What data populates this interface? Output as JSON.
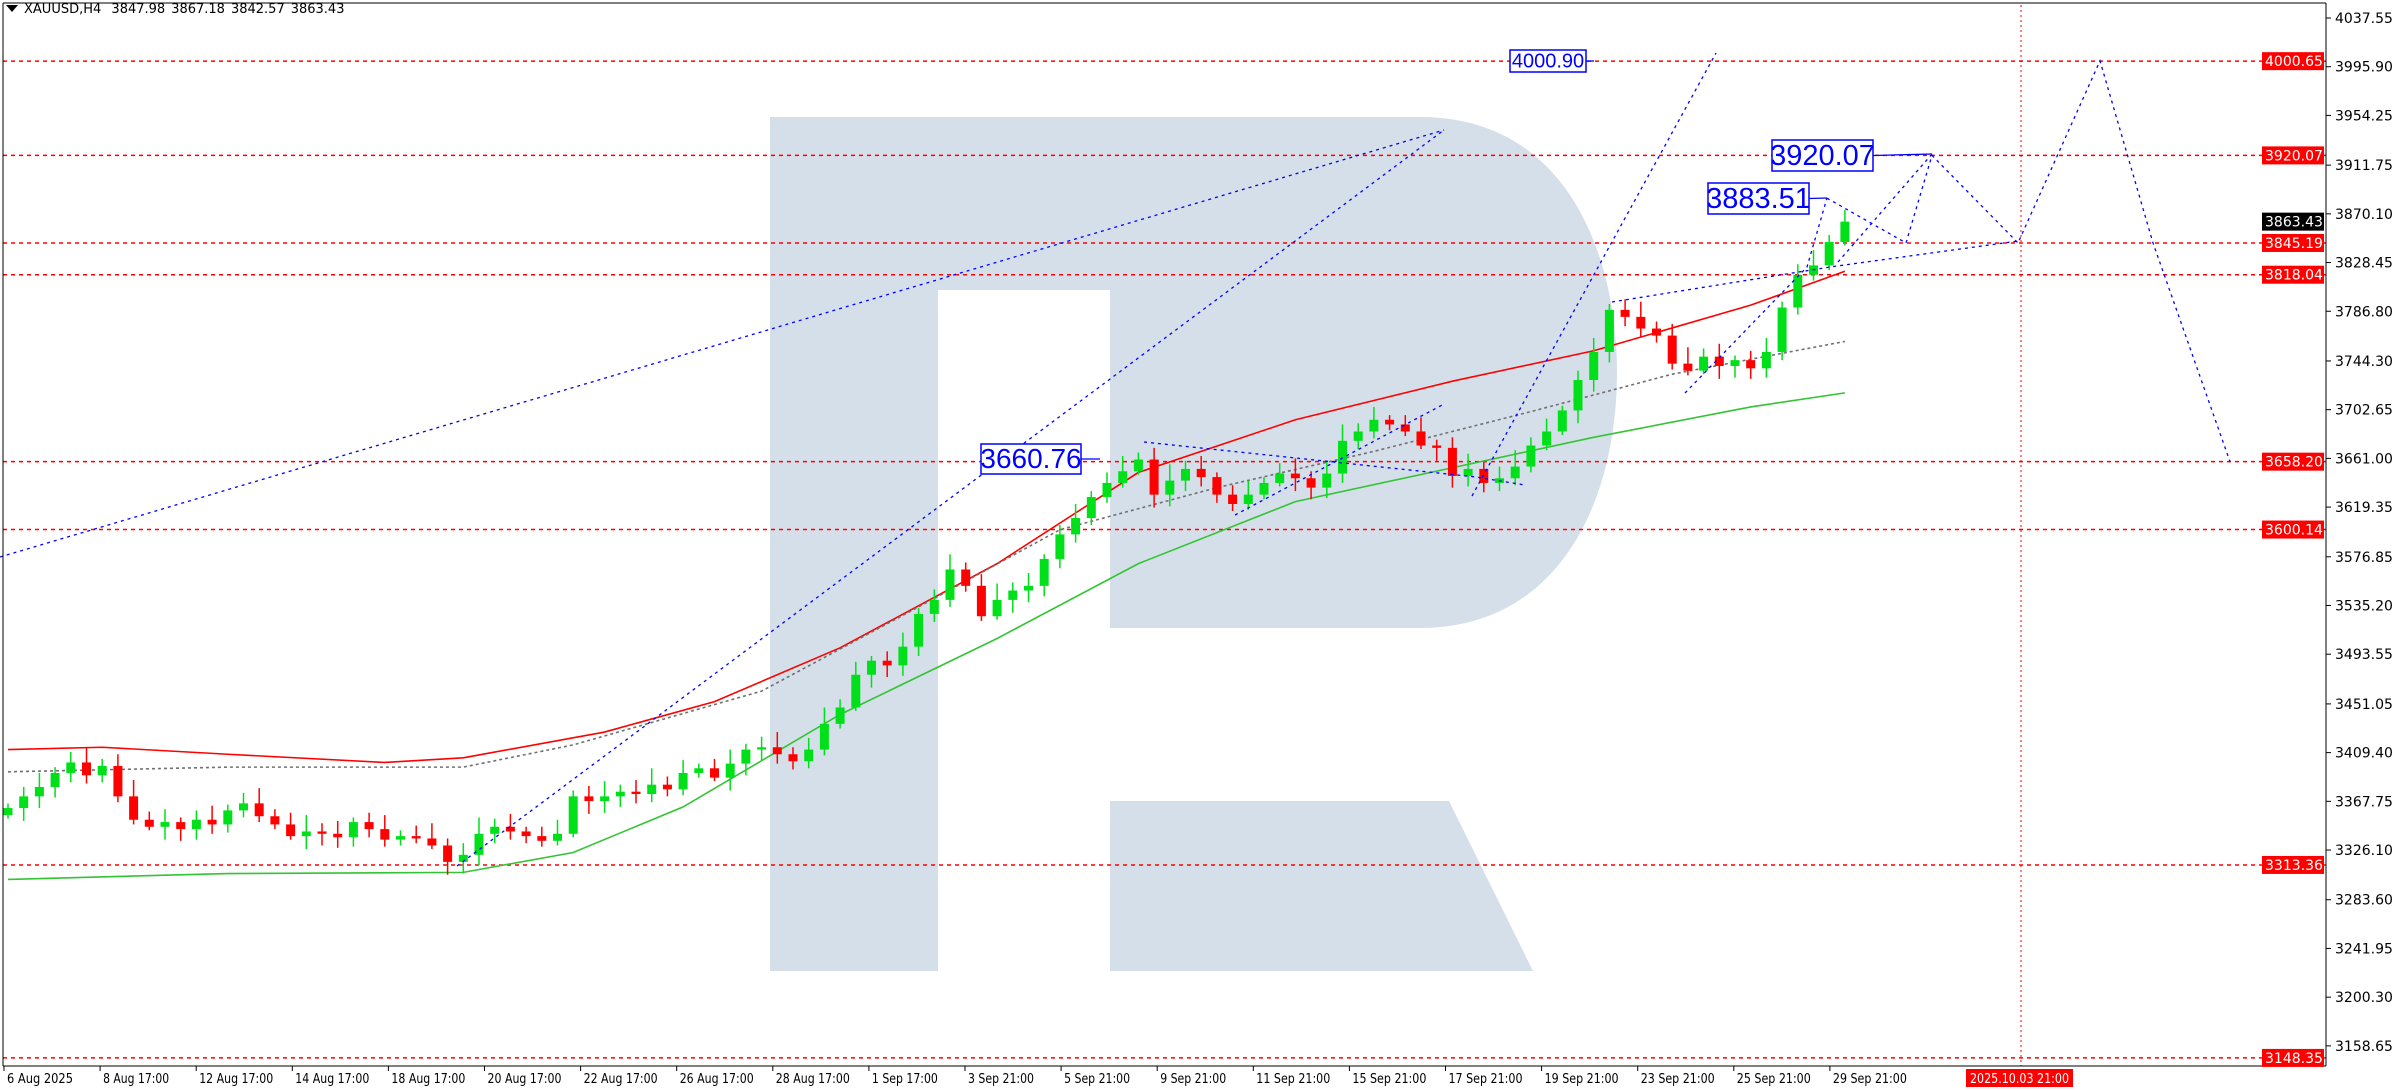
{
  "header": {
    "symbol": "XAUUSD,H4",
    "open": "3847.98",
    "high": "3867.18",
    "low": "3842.57",
    "close": "3863.43"
  },
  "chart_data": {
    "type": "candlestick",
    "symbol": "XAUUSD",
    "timeframe": "H4",
    "ylim": [
      3148.35,
      4037.55
    ],
    "grid": false,
    "colors": {
      "bull": "#00e01a",
      "bear": "#ff0000",
      "ma_upper": "#ff0000",
      "ma_lower": "#33c433",
      "ma_mid": "#707070",
      "level": "#ff0000",
      "annotation": "#0000ff",
      "watermark": "#d5dfea",
      "current_price_bg": "#000000"
    },
    "y_ticks": [
      "4037.55",
      "3995.90",
      "3954.25",
      "3911.75",
      "3870.10",
      "3828.45",
      "3786.80",
      "3744.30",
      "3702.65",
      "3661.00",
      "3619.35",
      "3576.85",
      "3535.20",
      "3493.55",
      "3451.05",
      "3409.40",
      "3367.75",
      "3326.10",
      "3283.60",
      "3241.95",
      "3200.30",
      "3158.65"
    ],
    "x_ticks": [
      "6 Aug 2025",
      "8 Aug 17:00",
      "12 Aug 17:00",
      "14 Aug 17:00",
      "18 Aug 17:00",
      "20 Aug 17:00",
      "22 Aug 17:00",
      "26 Aug 17:00",
      "28 Aug 17:00",
      "1 Sep 17:00",
      "3 Sep 21:00",
      "5 Sep 21:00",
      "9 Sep 21:00",
      "11 Sep 21:00",
      "15 Sep 21:00",
      "17 Sep 21:00",
      "19 Sep 21:00",
      "23 Sep 21:00",
      "25 Sep 21:00",
      "29 Sep 21:00"
    ],
    "future_marker": "2025.10.03 21:00",
    "closes": [
      3362,
      3372,
      3380,
      3392,
      3401,
      3390,
      3398,
      3372,
      3352,
      3346,
      3350,
      3344,
      3352,
      3348,
      3360,
      3366,
      3355,
      3348,
      3338,
      3342,
      3340,
      3337,
      3350,
      3344,
      3335,
      3338,
      3336,
      3330,
      3316,
      3322,
      3340,
      3346,
      3342,
      3338,
      3334,
      3340,
      3372,
      3368,
      3372,
      3376,
      3374,
      3382,
      3378,
      3392,
      3396,
      3388,
      3400,
      3412,
      3414,
      3408,
      3402,
      3412,
      3434,
      3448,
      3476,
      3488,
      3484,
      3500,
      3528,
      3540,
      3566,
      3552,
      3526,
      3540,
      3548,
      3552,
      3575,
      3596,
      3610,
      3628,
      3640,
      3650,
      3660,
      3630,
      3642,
      3652,
      3645,
      3630,
      3622,
      3630,
      3640,
      3648,
      3644,
      3636,
      3648,
      3676,
      3684,
      3694,
      3690,
      3684,
      3672,
      3670,
      3646,
      3652,
      3640,
      3644,
      3654,
      3672,
      3684,
      3702,
      3728,
      3752,
      3788,
      3782,
      3772,
      3766,
      3742,
      3736,
      3748,
      3740,
      3745,
      3738,
      3752,
      3790,
      3818,
      3826,
      3846,
      3863.43
    ],
    "ma_upper": [
      [
        0,
        3412
      ],
      [
        6,
        3414
      ],
      [
        14,
        3408
      ],
      [
        24,
        3401
      ],
      [
        29,
        3405
      ],
      [
        38,
        3427
      ],
      [
        45,
        3453
      ],
      [
        53,
        3499
      ],
      [
        63,
        3571
      ],
      [
        72,
        3649
      ],
      [
        82,
        3694
      ],
      [
        92,
        3727
      ],
      [
        101,
        3753
      ],
      [
        111,
        3792
      ],
      [
        117,
        3821
      ]
    ],
    "ma_lower": [
      [
        0,
        3301
      ],
      [
        14,
        3306
      ],
      [
        29,
        3307
      ],
      [
        36,
        3324
      ],
      [
        43,
        3363
      ],
      [
        53,
        3442
      ],
      [
        63,
        3507
      ],
      [
        72,
        3571
      ],
      [
        82,
        3624
      ],
      [
        92,
        3653
      ],
      [
        101,
        3679
      ],
      [
        111,
        3705
      ],
      [
        117,
        3717
      ]
    ],
    "ma_mid": [
      [
        0,
        3393
      ],
      [
        14,
        3397
      ],
      [
        29,
        3397
      ],
      [
        36,
        3416
      ],
      [
        48,
        3462
      ],
      [
        58,
        3534
      ],
      [
        67,
        3600
      ],
      [
        77,
        3636
      ],
      [
        87,
        3667
      ],
      [
        97,
        3701
      ],
      [
        106,
        3733
      ],
      [
        117,
        3761
      ]
    ],
    "levels": [
      "4000.65",
      "3920.07",
      "3845.19",
      "3818.04",
      "3658.20",
      "3600.14",
      "3313.36",
      "3148.35"
    ],
    "current_price": "3863.43",
    "annotations": {
      "label_4000": "4000.90",
      "label_3660": "3660.76",
      "label_3920": "3920.07",
      "label_3883": "3883.51"
    },
    "forecast_path": [
      3883.51,
      3845.19,
      3920.07,
      3845.19,
      4000.9,
      3845.19,
      3658.2
    ]
  }
}
